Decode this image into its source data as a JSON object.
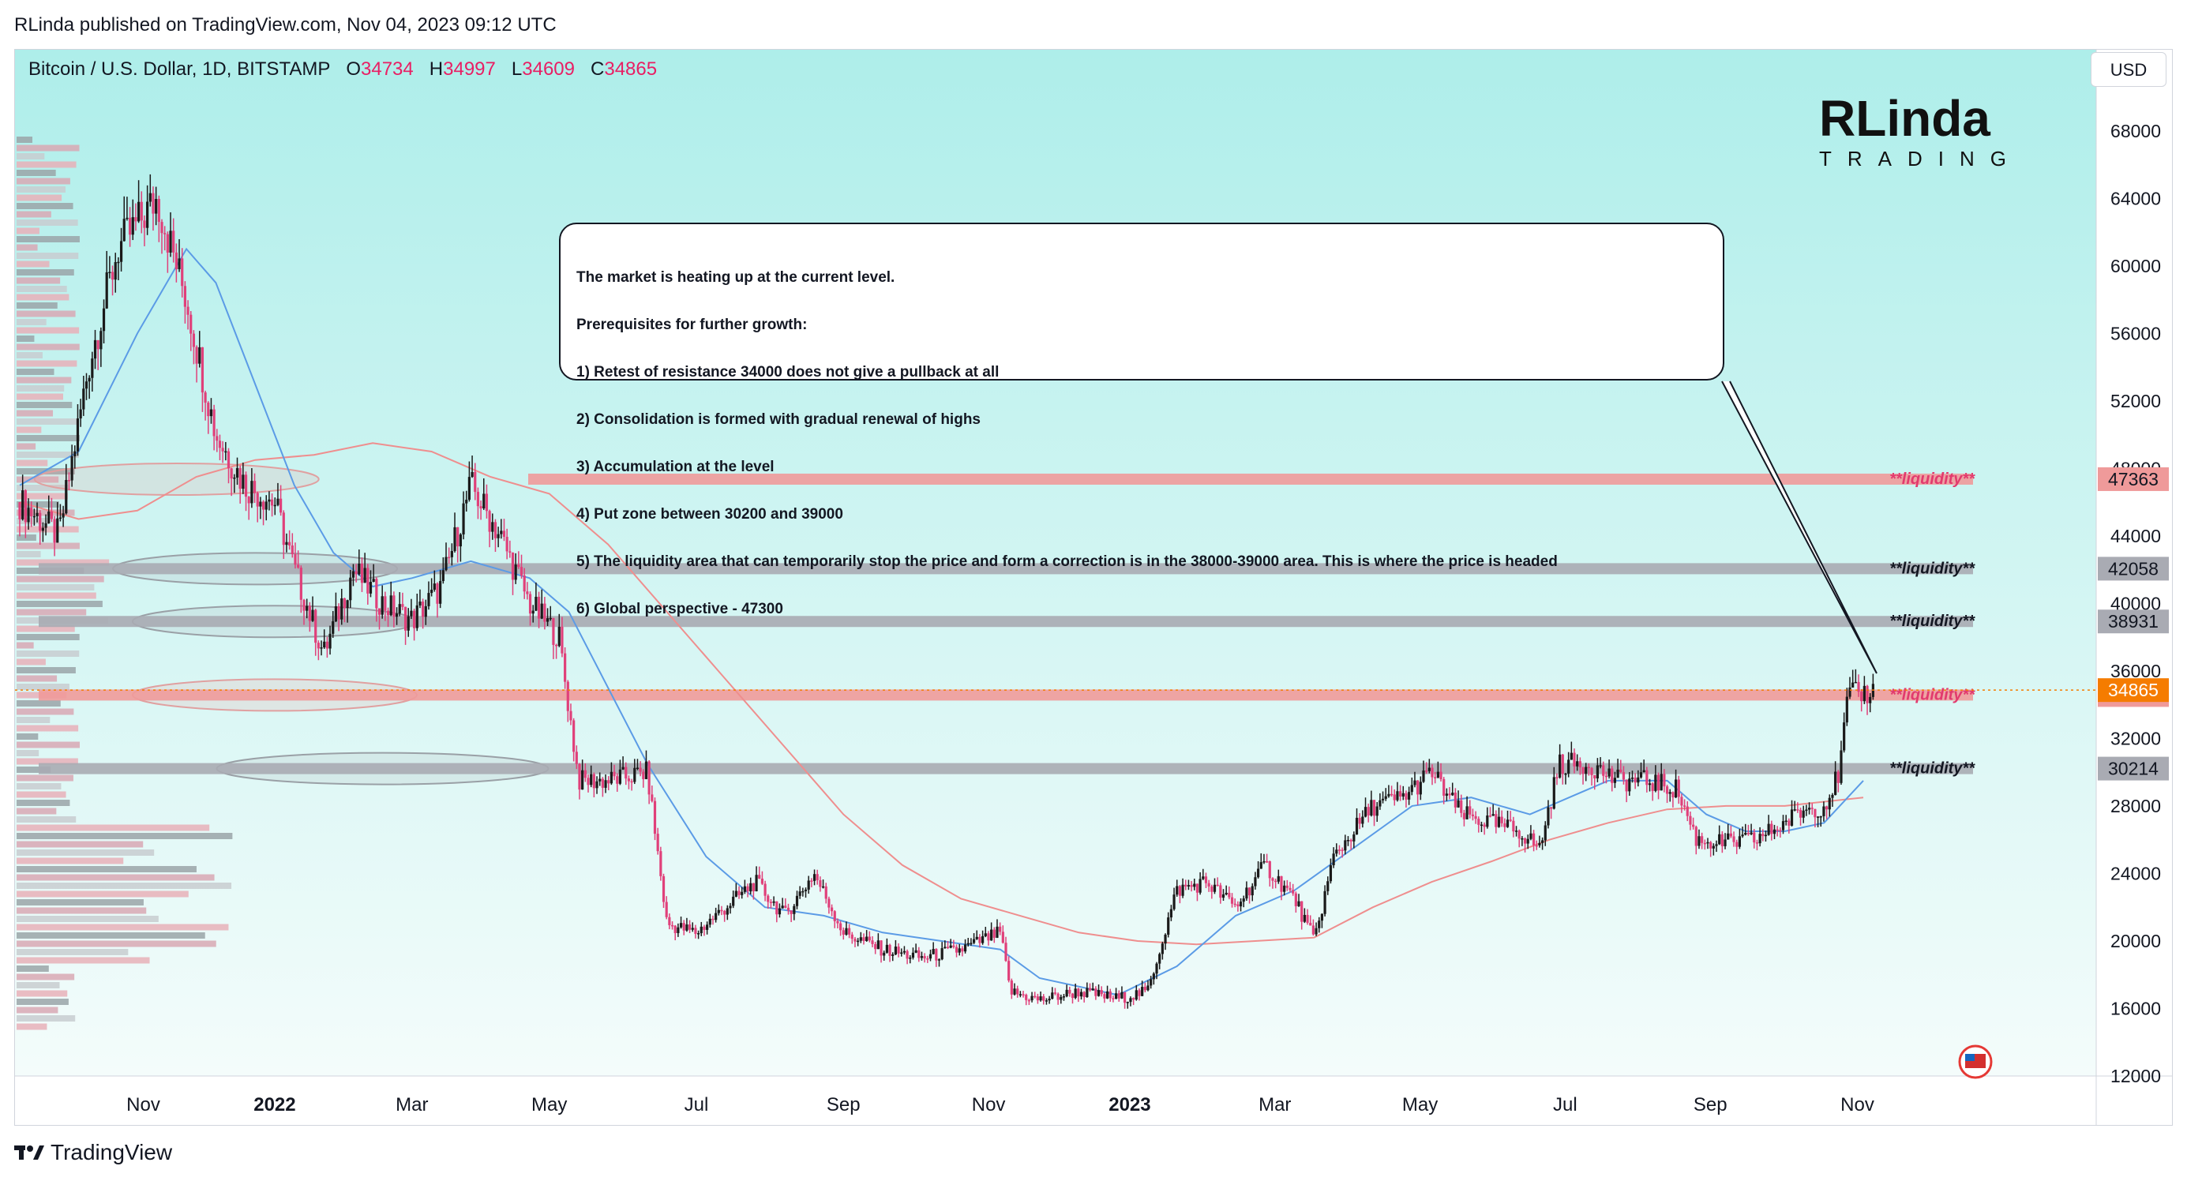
{
  "published": "RLinda published on TradingView.com, Nov 04, 2023 09:12 UTC",
  "symbol": {
    "name": "Bitcoin / U.S. Dollar, 1D, BITSTAMP",
    "o_label": "O",
    "o": "34734",
    "h_label": "H",
    "h": "34997",
    "l_label": "L",
    "l": "34609",
    "c_label": "C",
    "c": "34865"
  },
  "currency_button": "USD",
  "brand": {
    "main": "RLinda",
    "sub": "TRADING"
  },
  "annotation_lines": [
    "The market is heating up at the current level.",
    "Prerequisites for further growth:",
    "1) Retest of resistance 34000 does not give a pullback at all",
    "2) Consolidation is formed with gradual renewal of highs",
    "3) Accumulation at the level",
    "4) Put zone between 30200 and 39000",
    "5) The liquidity area that can temporarily stop the price and form a correction is in the 38000-39000 area. This is where the price is headed",
    "6) Global perspective - 47300"
  ],
  "footer": "TradingView",
  "colors": {
    "bg_top": "#aeeeea",
    "bg_bottom": "#f4fcfb",
    "candle_up": "#1a1a1a",
    "candle_down": "#e0407a",
    "ma_fast": "#5b9be6",
    "ma_slow": "#ef8e8e",
    "liq_red": "#ef9a9a",
    "liq_gray": "#a9abb3",
    "price_orange": "#f57c00"
  },
  "chart_data": {
    "type": "candlestick",
    "title": "Bitcoin / U.S. Dollar, 1D, BITSTAMP",
    "ylim": [
      12000,
      70000
    ],
    "y_ticks": [
      12000,
      16000,
      20000,
      24000,
      28000,
      32000,
      36000,
      40000,
      44000,
      48000,
      52000,
      56000,
      60000,
      64000,
      68000
    ],
    "x_labels": [
      {
        "label": "Nov",
        "t": 0.063,
        "bold": false
      },
      {
        "label": "2022",
        "t": 0.13,
        "bold": true
      },
      {
        "label": "Mar",
        "t": 0.2,
        "bold": false
      },
      {
        "label": "May",
        "t": 0.27,
        "bold": false
      },
      {
        "label": "Jul",
        "t": 0.345,
        "bold": false
      },
      {
        "label": "Sep",
        "t": 0.42,
        "bold": false
      },
      {
        "label": "Nov",
        "t": 0.494,
        "bold": false
      },
      {
        "label": "2023",
        "t": 0.566,
        "bold": true
      },
      {
        "label": "Mar",
        "t": 0.64,
        "bold": false
      },
      {
        "label": "May",
        "t": 0.714,
        "bold": false
      },
      {
        "label": "Jul",
        "t": 0.788,
        "bold": false
      },
      {
        "label": "Sep",
        "t": 0.862,
        "bold": false
      },
      {
        "label": "Nov",
        "t": 0.937,
        "bold": false
      }
    ],
    "price_path": [
      [
        0.0,
        46000
      ],
      [
        0.02,
        44000
      ],
      [
        0.035,
        54000
      ],
      [
        0.05,
        61000
      ],
      [
        0.07,
        64000
      ],
      [
        0.085,
        58000
      ],
      [
        0.1,
        50000
      ],
      [
        0.115,
        47000
      ],
      [
        0.13,
        46000
      ],
      [
        0.14,
        42000
      ],
      [
        0.155,
        37000
      ],
      [
        0.17,
        42000
      ],
      [
        0.185,
        40000
      ],
      [
        0.2,
        39000
      ],
      [
        0.215,
        41000
      ],
      [
        0.23,
        47000
      ],
      [
        0.245,
        44000
      ],
      [
        0.26,
        40000
      ],
      [
        0.275,
        38000
      ],
      [
        0.285,
        29500
      ],
      [
        0.3,
        29500
      ],
      [
        0.32,
        30000
      ],
      [
        0.33,
        21000
      ],
      [
        0.345,
        20500
      ],
      [
        0.36,
        22000
      ],
      [
        0.375,
        23500
      ],
      [
        0.39,
        21500
      ],
      [
        0.405,
        24000
      ],
      [
        0.42,
        20500
      ],
      [
        0.44,
        19500
      ],
      [
        0.46,
        19000
      ],
      [
        0.48,
        19500
      ],
      [
        0.5,
        20500
      ],
      [
        0.505,
        17000
      ],
      [
        0.52,
        16500
      ],
      [
        0.54,
        17000
      ],
      [
        0.56,
        16600
      ],
      [
        0.575,
        17000
      ],
      [
        0.59,
        23000
      ],
      [
        0.605,
        23500
      ],
      [
        0.62,
        22000
      ],
      [
        0.635,
        24500
      ],
      [
        0.65,
        22500
      ],
      [
        0.66,
        20000
      ],
      [
        0.67,
        25000
      ],
      [
        0.69,
        28000
      ],
      [
        0.705,
        28500
      ],
      [
        0.72,
        30000
      ],
      [
        0.735,
        27500
      ],
      [
        0.75,
        27000
      ],
      [
        0.765,
        26500
      ],
      [
        0.775,
        25500
      ],
      [
        0.785,
        30500
      ],
      [
        0.8,
        30500
      ],
      [
        0.815,
        29500
      ],
      [
        0.83,
        29500
      ],
      [
        0.845,
        29000
      ],
      [
        0.855,
        26000
      ],
      [
        0.87,
        25800
      ],
      [
        0.885,
        26000
      ],
      [
        0.9,
        27000
      ],
      [
        0.91,
        27800
      ],
      [
        0.92,
        28000
      ],
      [
        0.928,
        30000
      ],
      [
        0.932,
        34500
      ],
      [
        0.945,
        34800
      ]
    ],
    "ma_fast_path": [
      [
        0.0,
        47000
      ],
      [
        0.03,
        49000
      ],
      [
        0.06,
        56000
      ],
      [
        0.085,
        61000
      ],
      [
        0.1,
        59000
      ],
      [
        0.12,
        53000
      ],
      [
        0.14,
        47000
      ],
      [
        0.16,
        43000
      ],
      [
        0.18,
        41000
      ],
      [
        0.2,
        41500
      ],
      [
        0.23,
        42500
      ],
      [
        0.26,
        41500
      ],
      [
        0.28,
        39500
      ],
      [
        0.3,
        35000
      ],
      [
        0.32,
        30500
      ],
      [
        0.35,
        25000
      ],
      [
        0.38,
        22000
      ],
      [
        0.41,
        21500
      ],
      [
        0.44,
        20500
      ],
      [
        0.47,
        20000
      ],
      [
        0.5,
        19500
      ],
      [
        0.52,
        17800
      ],
      [
        0.56,
        16800
      ],
      [
        0.59,
        18500
      ],
      [
        0.62,
        21500
      ],
      [
        0.65,
        23000
      ],
      [
        0.68,
        25500
      ],
      [
        0.71,
        28000
      ],
      [
        0.74,
        28500
      ],
      [
        0.77,
        27500
      ],
      [
        0.79,
        28500
      ],
      [
        0.81,
        29500
      ],
      [
        0.84,
        29500
      ],
      [
        0.86,
        27500
      ],
      [
        0.88,
        26500
      ],
      [
        0.9,
        26500
      ],
      [
        0.92,
        27000
      ],
      [
        0.94,
        29500
      ]
    ],
    "ma_slow_path": [
      [
        0.0,
        46000
      ],
      [
        0.03,
        45000
      ],
      [
        0.06,
        45500
      ],
      [
        0.09,
        47500
      ],
      [
        0.12,
        48500
      ],
      [
        0.15,
        48800
      ],
      [
        0.18,
        49500
      ],
      [
        0.21,
        49000
      ],
      [
        0.24,
        47500
      ],
      [
        0.27,
        46500
      ],
      [
        0.3,
        43500
      ],
      [
        0.33,
        39500
      ],
      [
        0.36,
        35500
      ],
      [
        0.39,
        31500
      ],
      [
        0.42,
        27500
      ],
      [
        0.45,
        24500
      ],
      [
        0.48,
        22500
      ],
      [
        0.51,
        21500
      ],
      [
        0.54,
        20500
      ],
      [
        0.57,
        20000
      ],
      [
        0.6,
        19800
      ],
      [
        0.63,
        20000
      ],
      [
        0.66,
        20200
      ],
      [
        0.69,
        22000
      ],
      [
        0.72,
        23500
      ],
      [
        0.75,
        24700
      ],
      [
        0.78,
        26000
      ],
      [
        0.81,
        27000
      ],
      [
        0.84,
        27800
      ],
      [
        0.87,
        28000
      ],
      [
        0.9,
        28000
      ],
      [
        0.94,
        28500
      ]
    ],
    "levels": [
      {
        "price": 47363,
        "label": "**liquidity**",
        "value": "47363",
        "style": "red"
      },
      {
        "price": 42058,
        "label": "**liquidity**",
        "value": "42058",
        "style": "gray"
      },
      {
        "price": 38931,
        "label": "**liquidity**",
        "value": "38931",
        "style": "gray"
      },
      {
        "price": 34573,
        "label": "**liquidity**",
        "value": "34573",
        "style": "red"
      },
      {
        "price": 30214,
        "label": "**liquidity**",
        "value": "30214",
        "style": "gray"
      }
    ],
    "last_price": {
      "price": 34865,
      "value": "34865"
    },
    "zones": [
      {
        "t": 0.08,
        "price": 47363,
        "style": "red"
      },
      {
        "t": 0.12,
        "price": 42058,
        "style": "gray"
      },
      {
        "t": 0.13,
        "price": 38931,
        "style": "gray"
      },
      {
        "t": 0.13,
        "price": 34573,
        "style": "red"
      },
      {
        "t": 0.185,
        "price": 30214,
        "style": "gray"
      }
    ]
  }
}
